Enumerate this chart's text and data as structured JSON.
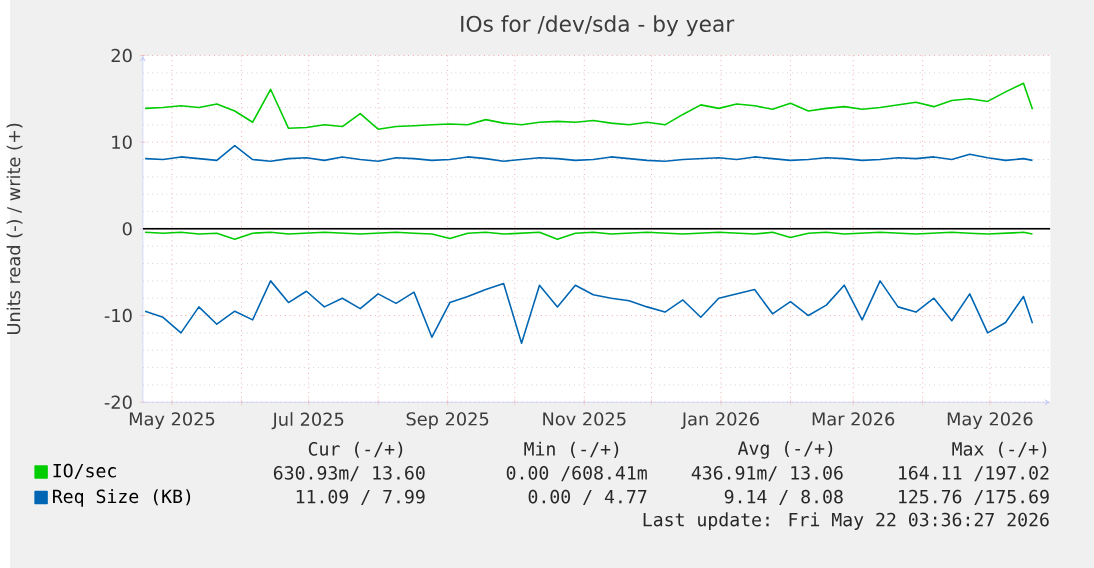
{
  "chart_data": {
    "type": "line",
    "title": "IOs for /dev/sda - by year",
    "ylabel": "Units read (-) / write (+)",
    "x": [
      "2025-04-19",
      "2025-04-27",
      "2025-05-05",
      "2025-05-13",
      "2025-05-21",
      "2025-05-29",
      "2025-06-06",
      "2025-06-14",
      "2025-06-22",
      "2025-06-30",
      "2025-07-08",
      "2025-07-16",
      "2025-07-24",
      "2025-08-01",
      "2025-08-09",
      "2025-08-17",
      "2025-08-25",
      "2025-09-02",
      "2025-09-10",
      "2025-09-18",
      "2025-09-26",
      "2025-10-04",
      "2025-10-12",
      "2025-10-20",
      "2025-10-28",
      "2025-11-05",
      "2025-11-13",
      "2025-11-21",
      "2025-11-29",
      "2025-12-07",
      "2025-12-15",
      "2025-12-23",
      "2025-12-31",
      "2026-01-08",
      "2026-01-16",
      "2026-01-24",
      "2026-02-01",
      "2026-02-09",
      "2026-02-17",
      "2026-02-25",
      "2026-03-05",
      "2026-03-13",
      "2026-03-21",
      "2026-03-29",
      "2026-04-06",
      "2026-04-14",
      "2026-04-22",
      "2026-04-30",
      "2026-05-08",
      "2026-05-16",
      "2026-05-20"
    ],
    "series": [
      {
        "name": "IO/sec",
        "color": "#00cc00",
        "values": [
          13.9,
          14.0,
          14.2,
          14.0,
          14.4,
          13.6,
          12.3,
          16.1,
          11.6,
          11.7,
          12.0,
          11.8,
          13.3,
          11.5,
          11.8,
          11.9,
          12.0,
          12.1,
          12.0,
          12.6,
          12.2,
          12.0,
          12.3,
          12.4,
          12.3,
          12.5,
          12.2,
          12.0,
          12.3,
          12.0,
          13.2,
          14.3,
          13.9,
          14.4,
          14.2,
          13.8,
          14.5,
          13.6,
          13.9,
          14.1,
          13.8,
          14.0,
          14.3,
          14.6,
          14.1,
          14.8,
          15.0,
          14.7,
          15.8,
          16.8,
          13.8
        ]
      },
      {
        "color": "#00cc00",
        "values": [
          -0.4,
          -0.5,
          -0.4,
          -0.6,
          -0.5,
          -1.2,
          -0.5,
          -0.4,
          -0.6,
          -0.5,
          -0.4,
          -0.5,
          -0.6,
          -0.5,
          -0.4,
          -0.5,
          -0.6,
          -1.1,
          -0.5,
          -0.4,
          -0.6,
          -0.5,
          -0.4,
          -1.2,
          -0.5,
          -0.4,
          -0.6,
          -0.5,
          -0.4,
          -0.5,
          -0.6,
          -0.5,
          -0.4,
          -0.5,
          -0.6,
          -0.4,
          -1.0,
          -0.5,
          -0.4,
          -0.6,
          -0.5,
          -0.4,
          -0.5,
          -0.6,
          -0.5,
          -0.4,
          -0.5,
          -0.6,
          -0.5,
          -0.4,
          -0.6
        ]
      },
      {
        "name": "Req Size (KB)",
        "color": "#0066b3",
        "values": [
          8.1,
          8.0,
          8.3,
          8.1,
          7.9,
          9.6,
          8.0,
          7.8,
          8.1,
          8.2,
          7.9,
          8.3,
          8.0,
          7.8,
          8.2,
          8.1,
          7.9,
          8.0,
          8.3,
          8.1,
          7.8,
          8.0,
          8.2,
          8.1,
          7.9,
          8.0,
          8.3,
          8.1,
          7.9,
          7.8,
          8.0,
          8.1,
          8.2,
          8.0,
          8.3,
          8.1,
          7.9,
          8.0,
          8.2,
          8.1,
          7.9,
          8.0,
          8.2,
          8.1,
          8.3,
          8.0,
          8.6,
          8.2,
          7.9,
          8.1,
          7.9
        ]
      },
      {
        "color": "#0066b3",
        "values": [
          -9.5,
          -10.2,
          -12.0,
          -9.0,
          -11.0,
          -9.5,
          -10.5,
          -6.0,
          -8.5,
          -7.2,
          -9.0,
          -8.0,
          -9.2,
          -7.5,
          -8.6,
          -7.3,
          -12.5,
          -8.5,
          -7.8,
          -7.0,
          -6.3,
          -13.2,
          -6.5,
          -9.0,
          -6.5,
          -7.6,
          -8.0,
          -8.3,
          -9.0,
          -9.6,
          -8.2,
          -10.2,
          -8.0,
          -7.5,
          -7.0,
          -9.8,
          -8.4,
          -10.0,
          -8.8,
          -6.5,
          -10.5,
          -6.0,
          -9.0,
          -9.6,
          -8.0,
          -10.6,
          -7.5,
          -12.0,
          -10.8,
          -7.8,
          -10.9
        ]
      }
    ],
    "xlim": [
      "2025-04-18",
      "2026-05-28"
    ],
    "xticks": [
      {
        "value": "2025-05-01",
        "label": "May 2025"
      },
      {
        "value": "2025-06-01",
        "label": null
      },
      {
        "value": "2025-07-01",
        "label": "Jul 2025"
      },
      {
        "value": "2025-08-01",
        "label": null
      },
      {
        "value": "2025-09-01",
        "label": "Sep 2025"
      },
      {
        "value": "2025-10-01",
        "label": null
      },
      {
        "value": "2025-11-01",
        "label": "Nov 2025"
      },
      {
        "value": "2025-12-01",
        "label": null
      },
      {
        "value": "2026-01-01",
        "label": "Jan 2026"
      },
      {
        "value": "2026-02-01",
        "label": null
      },
      {
        "value": "2026-03-01",
        "label": "Mar 2026"
      },
      {
        "value": "2026-04-01",
        "label": null
      },
      {
        "value": "2026-05-01",
        "label": "May 2026"
      }
    ],
    "ylim": [
      -20,
      20
    ],
    "yticks": [
      -20,
      -10,
      0,
      10,
      20
    ],
    "ref_lines": [
      {
        "axis": "y",
        "value": 0,
        "color": "#000000"
      }
    ],
    "grid": true,
    "legend": "bottom",
    "annotations": [
      "Cur (-/+)",
      "Min (-/+)",
      "Avg (-/+)",
      "Max (-/+)",
      "630.93m/ 13.60",
      "0.00 /608.41m",
      "436.91m/ 13.06",
      "164.11 /197.02",
      "11.09 /  7.99",
      "0.00 /  4.77",
      "9.14 /  8.08",
      "125.76 /175.69",
      "Last update: Fri May 22 03:36:27 2026"
    ]
  }
}
